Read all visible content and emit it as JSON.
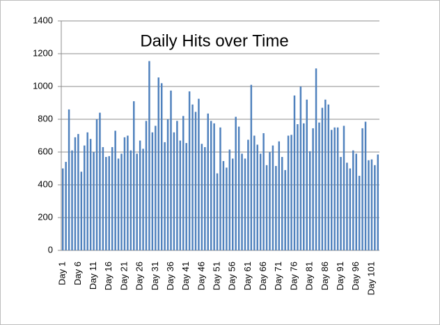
{
  "chart_data": {
    "type": "bar",
    "title": "Daily Hits over Time",
    "categories": [
      "Day 1",
      null,
      null,
      null,
      null,
      "Day 6",
      null,
      null,
      null,
      null,
      "Day 11",
      null,
      null,
      null,
      null,
      "Day 16",
      null,
      null,
      null,
      null,
      "Day 21",
      null,
      null,
      null,
      null,
      "Day 26",
      null,
      null,
      null,
      null,
      "Day 31",
      null,
      null,
      null,
      null,
      "Day 36",
      null,
      null,
      null,
      null,
      "Day 41",
      null,
      null,
      null,
      null,
      "Day 46",
      null,
      null,
      null,
      null,
      "Day 51",
      null,
      null,
      null,
      null,
      "Day 56",
      null,
      null,
      null,
      null,
      "Day 61",
      null,
      null,
      null,
      null,
      "Day 66",
      null,
      null,
      null,
      null,
      "Day 71",
      null,
      null,
      null,
      null,
      "Day 76",
      null,
      null,
      null,
      null,
      "Day 81",
      null,
      null,
      null,
      null,
      "Day 86",
      null,
      null,
      null,
      null,
      "Day 91",
      null,
      null,
      null,
      null,
      "Day 96",
      null,
      null,
      null,
      null,
      "Day 101",
      null,
      null
    ],
    "values": [
      500,
      540,
      860,
      610,
      690,
      710,
      480,
      640,
      720,
      680,
      600,
      800,
      840,
      630,
      570,
      575,
      630,
      730,
      560,
      590,
      690,
      700,
      610,
      910,
      590,
      670,
      620,
      790,
      1155,
      720,
      760,
      1055,
      1020,
      660,
      800,
      975,
      720,
      790,
      670,
      820,
      655,
      970,
      890,
      845,
      925,
      650,
      630,
      835,
      790,
      775,
      470,
      750,
      545,
      505,
      615,
      560,
      815,
      755,
      590,
      560,
      675,
      1010,
      700,
      645,
      590,
      715,
      520,
      600,
      640,
      515,
      665,
      570,
      490,
      700,
      705,
      945,
      770,
      1000,
      775,
      920,
      605,
      745,
      1110,
      780,
      870,
      920,
      890,
      735,
      750,
      750,
      570,
      760,
      535,
      500,
      610,
      590,
      455,
      745,
      785,
      550,
      555,
      520,
      585
    ],
    "color": "#4f81bd",
    "ylim": [
      0,
      1400
    ],
    "yticks": [
      0,
      200,
      400,
      600,
      800,
      1000,
      1200,
      1400
    ],
    "grid": true
  }
}
